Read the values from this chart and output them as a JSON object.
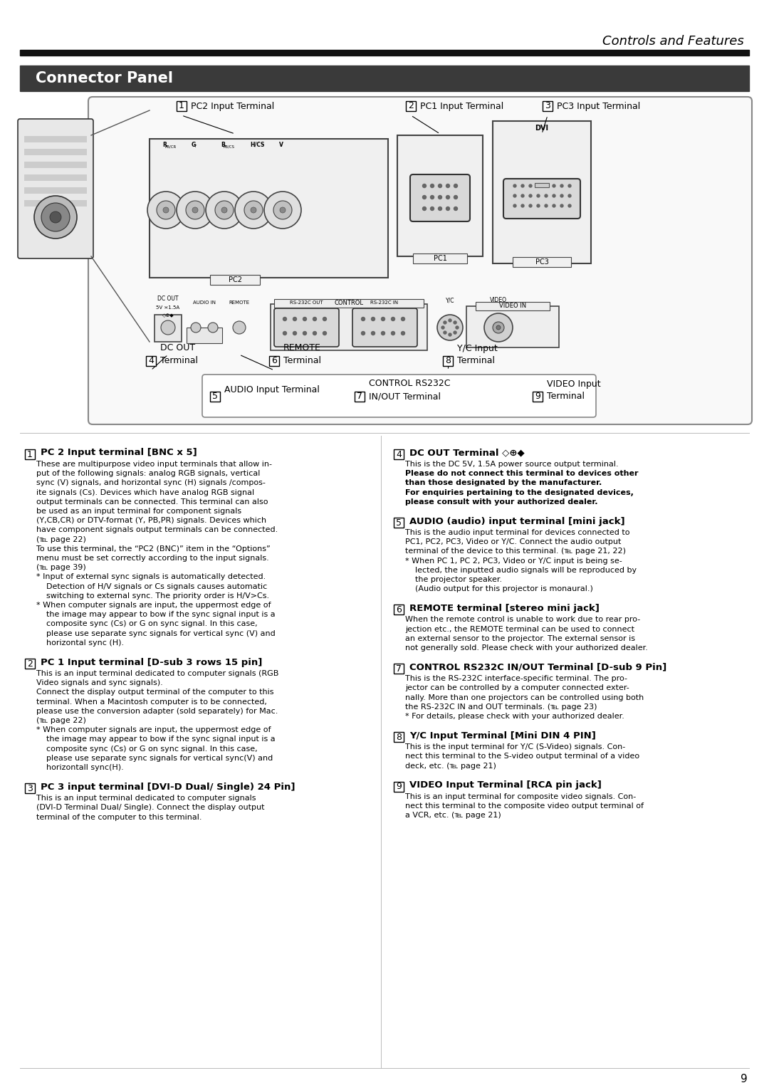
{
  "page_title": "Controls and Features",
  "section_title": "Connector Panel",
  "background_color": "#ffffff",
  "header_bar_color": "#1a1a1a",
  "section_bar_color": "#3a3a3a",
  "page_number": "9",
  "descriptions": [
    {
      "num": "1",
      "title": "PC 2 Input terminal [BNC x 5]",
      "body": "These are multipurpose video input terminals that allow in-\nput of the following signals: analog RGB signals, vertical\nsync (V) signals, and horizontal sync (H) signals /compos-\nite signals (Cs). Devices which have analog RGB signal\noutput terminals can be connected. This terminal can also\nbe used as an input terminal for component signals\n(Y,CB,CR) or DTV-format (Y, PB,PR) signals. Devices which\nhave component signals output terminals can be connected.\n(℡ page 22)\nTo use this terminal, the “PC2 (BNC)” item in the “Options”\nmenu must be set correctly according to the input signals.\n(℡ page 39)\n* Input of external sync signals is automatically detected.\n  Detection of H/V signals or Cs signals causes automatic\n  switching to external sync. The priority order is H/V>Cs.\n* When computer signals are input, the uppermost edge of\n  the image may appear to bow if the sync signal input is a\n  composite sync (Cs) or G on sync signal. In this case,\n  please use separate sync signals for vertical sync (V) and\n  horizontal sync (H).",
      "bold_lines": []
    },
    {
      "num": "2",
      "title": "PC 1 Input terminal [D-sub 3 rows 15 pin]",
      "body": "This is an input terminal dedicated to computer signals (RGB\nVideo signals and sync signals).\nConnect the display output terminal of the computer to this\nterminal. When a Macintosh computer is to be connected,\nplease use the conversion adapter (sold separately) for Mac.\n(℡ page 22)\n* When computer signals are input, the uppermost edge of\n  the image may appear to bow if the sync signal input is a\n  composite sync (Cs) or G on sync signal. In this case,\n  please use separate sync signals for vertical sync(V) and\n  horizontall sync(H).",
      "bold_lines": []
    },
    {
      "num": "3",
      "title": "PC 3 input terminal [DVI-D Dual/ Single) 24 Pin]",
      "body": "This is an input terminal dedicated to computer signals\n(DVI-D Terminal Dual/ Single). Connect the display output\nterminal of the computer to this terminal.",
      "bold_lines": []
    },
    {
      "num": "4",
      "title": "DC OUT Terminal ◇⊕◆",
      "body": "This is the DC 5V, 1.5A power source output terminal.\nPlease do not connect this terminal to devices other\nthan those designated by the manufacturer.\nFor enquiries pertaining to the designated devices,\nplease consult with your authorized dealer.",
      "bold_lines": [
        "Please do not connect this terminal to devices other",
        "than those designated by the manufacturer.",
        "For enquiries pertaining to the designated devices,",
        "please consult with your authorized dealer."
      ]
    },
    {
      "num": "5",
      "title": "AUDIO (audio) input terminal [mini jack]",
      "body": "This is the audio input terminal for devices connected to\nPC1, PC2, PC3, Video or Y/C. Connect the audio output\nterminal of the device to this terminal. (℡ page 21, 22)\n* When PC 1, PC 2, PC3, Video or Y/C input is being se-\n  lected, the inputted audio signals will be reproduced by\n  the projector speaker.\n  (Audio output for this projector is monaural.)",
      "bold_lines": []
    },
    {
      "num": "6",
      "title": "REMOTE terminal [stereo mini jack]",
      "body": "When the remote control is unable to work due to rear pro-\njection etc., the REMOTE terminal can be used to connect\nan external sensor to the projector. The external sensor is\nnot generally sold. Please check with your authorized dealer.",
      "bold_lines": []
    },
    {
      "num": "7",
      "title": "CONTROL RS232C IN/OUT Terminal [D-sub 9 Pin]",
      "body": "This is the RS-232C interface-specific terminal. The pro-\njector can be controlled by a computer connected exter-\nnally. More than one projectors can be controlled using both\nthe RS-232C IN and OUT terminals. (℡ page 23)\n* For details, please check with your authorized dealer.",
      "bold_lines": []
    },
    {
      "num": "8",
      "title": "Y/C Input Terminal [Mini DIN 4 PIN]",
      "body": "This is the input terminal for Y/C (S-Video) signals. Con-\nnect this terminal to the S-video output terminal of a video\ndeck, etc. (℡ page 21)",
      "bold_lines": []
    },
    {
      "num": "9",
      "title": "VIDEO Input Terminal [RCA pin jack]",
      "body": "This is an input terminal for composite video signals. Con-\nnect this terminal to the composite video output terminal of\na VCR, etc. (℡ page 21)",
      "bold_lines": []
    }
  ]
}
